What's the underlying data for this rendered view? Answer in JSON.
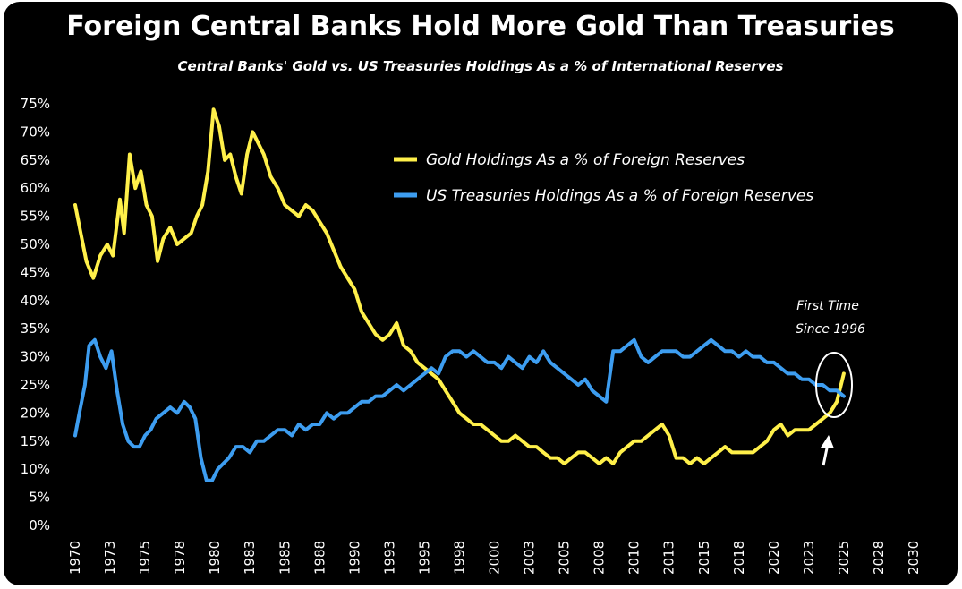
{
  "chart_data": {
    "type": "line",
    "title": "Foreign Central Banks Hold More Gold Than Treasuries",
    "subtitle": "Central Banks' Gold vs. US Treasuries Holdings As a % of International Reserves",
    "xlabel": "",
    "ylabel": "",
    "xlim": [
      1970,
      2030
    ],
    "ylim": [
      0,
      75
    ],
    "x_ticks": [
      "1970",
      "1973",
      "1975",
      "1978",
      "1980",
      "1983",
      "1985",
      "1988",
      "1990",
      "1993",
      "1995",
      "1998",
      "2000",
      "2003",
      "2005",
      "2008",
      "2010",
      "2013",
      "2015",
      "2018",
      "2020",
      "2023",
      "2025",
      "2028",
      "2030"
    ],
    "y_ticks": [
      "0%",
      "5%",
      "10%",
      "15%",
      "20%",
      "25%",
      "30%",
      "35%",
      "40%",
      "45%",
      "50%",
      "55%",
      "60%",
      "65%",
      "70%",
      "75%"
    ],
    "grid": false,
    "legend_position": "top-right",
    "series": [
      {
        "name": "Gold Holdings As a % of Foreign Reserves",
        "color": "#fff04a",
        "points": [
          [
            1970.0,
            57
          ],
          [
            1970.4,
            52
          ],
          [
            1970.8,
            47
          ],
          [
            1971.3,
            44
          ],
          [
            1971.8,
            48
          ],
          [
            1972.3,
            50
          ],
          [
            1972.7,
            48
          ],
          [
            1973.2,
            58
          ],
          [
            1973.5,
            52
          ],
          [
            1973.9,
            66
          ],
          [
            1974.3,
            60
          ],
          [
            1974.7,
            63
          ],
          [
            1975.1,
            57
          ],
          [
            1975.5,
            55
          ],
          [
            1975.9,
            47
          ],
          [
            1976.3,
            51
          ],
          [
            1976.8,
            53
          ],
          [
            1977.3,
            50
          ],
          [
            1977.8,
            51
          ],
          [
            1978.3,
            52
          ],
          [
            1978.7,
            55
          ],
          [
            1979.1,
            57
          ],
          [
            1979.5,
            63
          ],
          [
            1979.9,
            74
          ],
          [
            1980.3,
            71
          ],
          [
            1980.7,
            65
          ],
          [
            1981.1,
            66
          ],
          [
            1981.5,
            62
          ],
          [
            1981.9,
            59
          ],
          [
            1982.3,
            66
          ],
          [
            1982.7,
            70
          ],
          [
            1983.1,
            68
          ],
          [
            1983.5,
            66
          ],
          [
            1984.0,
            62
          ],
          [
            1984.5,
            60
          ],
          [
            1985.0,
            57
          ],
          [
            1985.5,
            56
          ],
          [
            1986.0,
            55
          ],
          [
            1986.5,
            57
          ],
          [
            1987.0,
            56
          ],
          [
            1987.5,
            54
          ],
          [
            1988.0,
            52
          ],
          [
            1988.5,
            49
          ],
          [
            1989.0,
            46
          ],
          [
            1989.5,
            44
          ],
          [
            1990.0,
            42
          ],
          [
            1990.5,
            38
          ],
          [
            1991.0,
            36
          ],
          [
            1991.5,
            34
          ],
          [
            1992.0,
            33
          ],
          [
            1992.5,
            34
          ],
          [
            1993.0,
            36
          ],
          [
            1993.5,
            32
          ],
          [
            1994.0,
            31
          ],
          [
            1994.5,
            29
          ],
          [
            1995.0,
            28
          ],
          [
            1995.5,
            27
          ],
          [
            1996.0,
            26
          ],
          [
            1996.5,
            24
          ],
          [
            1997.0,
            22
          ],
          [
            1997.5,
            20
          ],
          [
            1998.0,
            19
          ],
          [
            1998.5,
            18
          ],
          [
            1999.0,
            18
          ],
          [
            1999.5,
            17
          ],
          [
            2000.0,
            16
          ],
          [
            2000.5,
            15
          ],
          [
            2001.0,
            15
          ],
          [
            2001.5,
            16
          ],
          [
            2002.0,
            15
          ],
          [
            2002.5,
            14
          ],
          [
            2003.0,
            14
          ],
          [
            2003.5,
            13
          ],
          [
            2004.0,
            12
          ],
          [
            2004.5,
            12
          ],
          [
            2005.0,
            11
          ],
          [
            2005.5,
            12
          ],
          [
            2006.0,
            13
          ],
          [
            2006.5,
            13
          ],
          [
            2007.0,
            12
          ],
          [
            2007.5,
            11
          ],
          [
            2008.0,
            12
          ],
          [
            2008.5,
            11
          ],
          [
            2009.0,
            13
          ],
          [
            2009.5,
            14
          ],
          [
            2010.0,
            15
          ],
          [
            2010.5,
            15
          ],
          [
            2011.0,
            16
          ],
          [
            2011.5,
            17
          ],
          [
            2012.0,
            18
          ],
          [
            2012.5,
            16
          ],
          [
            2013.0,
            12
          ],
          [
            2013.5,
            12
          ],
          [
            2014.0,
            11
          ],
          [
            2014.5,
            12
          ],
          [
            2015.0,
            11
          ],
          [
            2015.5,
            12
          ],
          [
            2016.0,
            13
          ],
          [
            2016.5,
            14
          ],
          [
            2017.0,
            13
          ],
          [
            2017.5,
            13
          ],
          [
            2018.0,
            13
          ],
          [
            2018.5,
            13
          ],
          [
            2019.0,
            14
          ],
          [
            2019.5,
            15
          ],
          [
            2020.0,
            17
          ],
          [
            2020.5,
            18
          ],
          [
            2021.0,
            16
          ],
          [
            2021.5,
            17
          ],
          [
            2022.0,
            17
          ],
          [
            2022.5,
            17
          ],
          [
            2023.0,
            18
          ],
          [
            2023.5,
            19
          ],
          [
            2024.0,
            20
          ],
          [
            2024.5,
            22
          ],
          [
            2025.0,
            27
          ]
        ]
      },
      {
        "name": "US Treasuries Holdings As a % of Foreign Reserves",
        "color": "#3d9df0",
        "points": [
          [
            1970.0,
            16
          ],
          [
            1970.3,
            20
          ],
          [
            1970.7,
            25
          ],
          [
            1971.0,
            32
          ],
          [
            1971.4,
            33
          ],
          [
            1971.8,
            30
          ],
          [
            1972.2,
            28
          ],
          [
            1972.6,
            31
          ],
          [
            1973.0,
            24
          ],
          [
            1973.4,
            18
          ],
          [
            1973.8,
            15
          ],
          [
            1974.2,
            14
          ],
          [
            1974.6,
            14
          ],
          [
            1975.0,
            16
          ],
          [
            1975.4,
            17
          ],
          [
            1975.8,
            19
          ],
          [
            1976.3,
            20
          ],
          [
            1976.8,
            21
          ],
          [
            1977.3,
            20
          ],
          [
            1977.8,
            22
          ],
          [
            1978.2,
            21
          ],
          [
            1978.6,
            19
          ],
          [
            1979.0,
            12
          ],
          [
            1979.4,
            8
          ],
          [
            1979.8,
            8
          ],
          [
            1980.2,
            10
          ],
          [
            1980.6,
            11
          ],
          [
            1981.0,
            12
          ],
          [
            1981.5,
            14
          ],
          [
            1982.0,
            14
          ],
          [
            1982.5,
            13
          ],
          [
            1983.0,
            15
          ],
          [
            1983.5,
            15
          ],
          [
            1984.0,
            16
          ],
          [
            1984.5,
            17
          ],
          [
            1985.0,
            17
          ],
          [
            1985.5,
            16
          ],
          [
            1986.0,
            18
          ],
          [
            1986.5,
            17
          ],
          [
            1987.0,
            18
          ],
          [
            1987.5,
            18
          ],
          [
            1988.0,
            20
          ],
          [
            1988.5,
            19
          ],
          [
            1989.0,
            20
          ],
          [
            1989.5,
            20
          ],
          [
            1990.0,
            21
          ],
          [
            1990.5,
            22
          ],
          [
            1991.0,
            22
          ],
          [
            1991.5,
            23
          ],
          [
            1992.0,
            23
          ],
          [
            1992.5,
            24
          ],
          [
            1993.0,
            25
          ],
          [
            1993.5,
            24
          ],
          [
            1994.0,
            25
          ],
          [
            1994.5,
            26
          ],
          [
            1995.0,
            27
          ],
          [
            1995.5,
            28
          ],
          [
            1996.0,
            27
          ],
          [
            1996.5,
            30
          ],
          [
            1997.0,
            31
          ],
          [
            1997.5,
            31
          ],
          [
            1998.0,
            30
          ],
          [
            1998.5,
            31
          ],
          [
            1999.0,
            30
          ],
          [
            1999.5,
            29
          ],
          [
            2000.0,
            29
          ],
          [
            2000.5,
            28
          ],
          [
            2001.0,
            30
          ],
          [
            2001.5,
            29
          ],
          [
            2002.0,
            28
          ],
          [
            2002.5,
            30
          ],
          [
            2003.0,
            29
          ],
          [
            2003.5,
            31
          ],
          [
            2004.0,
            29
          ],
          [
            2004.5,
            28
          ],
          [
            2005.0,
            27
          ],
          [
            2005.5,
            26
          ],
          [
            2006.0,
            25
          ],
          [
            2006.5,
            26
          ],
          [
            2007.0,
            24
          ],
          [
            2007.5,
            23
          ],
          [
            2008.0,
            22
          ],
          [
            2008.5,
            31
          ],
          [
            2009.0,
            31
          ],
          [
            2009.5,
            32
          ],
          [
            2010.0,
            33
          ],
          [
            2010.5,
            30
          ],
          [
            2011.0,
            29
          ],
          [
            2011.5,
            30
          ],
          [
            2012.0,
            31
          ],
          [
            2012.5,
            31
          ],
          [
            2013.0,
            31
          ],
          [
            2013.5,
            30
          ],
          [
            2014.0,
            30
          ],
          [
            2014.5,
            31
          ],
          [
            2015.0,
            32
          ],
          [
            2015.5,
            33
          ],
          [
            2016.0,
            32
          ],
          [
            2016.5,
            31
          ],
          [
            2017.0,
            31
          ],
          [
            2017.5,
            30
          ],
          [
            2018.0,
            31
          ],
          [
            2018.5,
            30
          ],
          [
            2019.0,
            30
          ],
          [
            2019.5,
            29
          ],
          [
            2020.0,
            29
          ],
          [
            2020.5,
            28
          ],
          [
            2021.0,
            27
          ],
          [
            2021.5,
            27
          ],
          [
            2022.0,
            26
          ],
          [
            2022.5,
            26
          ],
          [
            2023.0,
            25
          ],
          [
            2023.5,
            25
          ],
          [
            2024.0,
            24
          ],
          [
            2024.5,
            24
          ],
          [
            2025.0,
            23
          ]
        ]
      }
    ],
    "annotation": {
      "lines": [
        "First Time",
        "Since 1996"
      ]
    }
  }
}
